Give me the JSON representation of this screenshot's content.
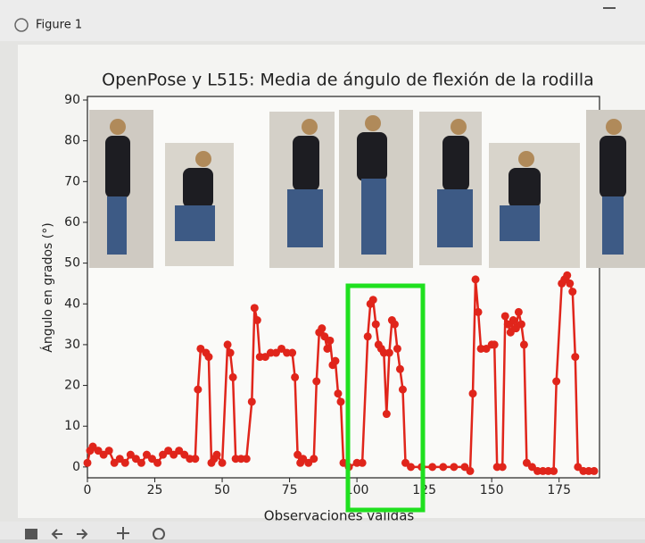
{
  "window": {
    "title": "Figure 1"
  },
  "chart_data": {
    "type": "line",
    "title": "OpenPose y L515: Media de ángulo de flexión de la rodilla",
    "xlabel": "Observaciones válidas",
    "ylabel": "Ángulo en grados (°)",
    "x": [
      0,
      1,
      2,
      4,
      6,
      8,
      10,
      12,
      14,
      16,
      18,
      20,
      22,
      24,
      26,
      28,
      30,
      32,
      34,
      36,
      38,
      40,
      41,
      42,
      44,
      45,
      46,
      47,
      48,
      50,
      52,
      53,
      54,
      55,
      57,
      59,
      61,
      62,
      63,
      64,
      66,
      68,
      70,
      72,
      74,
      76,
      77,
      78,
      79,
      80,
      82,
      84,
      85,
      86,
      87,
      88,
      89,
      90,
      91,
      92,
      93,
      94,
      95,
      97,
      100,
      102,
      104,
      105,
      106,
      107,
      108,
      109,
      110,
      111,
      112,
      113,
      114,
      115,
      116,
      117,
      118,
      120,
      124,
      128,
      132,
      136,
      140,
      142,
      143,
      144,
      145,
      146,
      148,
      150,
      151,
      152,
      154,
      155,
      156,
      157,
      158,
      159,
      160,
      161,
      162,
      163,
      165,
      167,
      169,
      171,
      173,
      174,
      176,
      177,
      178,
      179,
      180,
      181,
      182,
      184,
      186,
      188
    ],
    "values": [
      1,
      4,
      5,
      4,
      3,
      4,
      1,
      2,
      1,
      3,
      2,
      1,
      3,
      2,
      1,
      3,
      4,
      3,
      4,
      3,
      2,
      2,
      19,
      29,
      28,
      27,
      1,
      2,
      3,
      1,
      30,
      28,
      22,
      2,
      2,
      2,
      16,
      39,
      36,
      27,
      27,
      28,
      28,
      29,
      28,
      28,
      22,
      3,
      1,
      2,
      1,
      2,
      21,
      33,
      34,
      32,
      29,
      31,
      25,
      26,
      18,
      16,
      1,
      0,
      1,
      1,
      32,
      40,
      41,
      35,
      30,
      29,
      28,
      13,
      28,
      36,
      35,
      29,
      24,
      19,
      1,
      0,
      0,
      0,
      0,
      0,
      0,
      -1,
      18,
      46,
      38,
      29,
      29,
      30,
      30,
      0,
      0,
      37,
      35,
      33,
      36,
      34,
      38,
      35,
      30,
      1,
      0,
      -1,
      -1,
      -1,
      -1,
      21,
      45,
      46,
      47,
      45,
      43,
      27,
      0,
      -1,
      -1,
      -1
    ],
    "color": "#e0251b",
    "xlim": [
      0,
      190
    ],
    "xticks": [
      0,
      25,
      50,
      75,
      100,
      125,
      150,
      175
    ],
    "ylim": [
      -2,
      90
    ],
    "yticks": [
      0,
      10,
      20,
      30,
      40,
      50,
      60,
      70,
      80,
      90
    ]
  }
}
